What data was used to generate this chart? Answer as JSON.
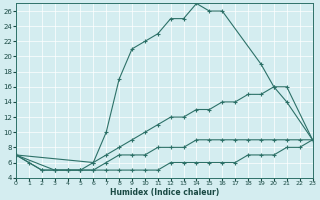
{
  "bg_color": "#d4edf0",
  "line_color": "#2d7168",
  "xlabel": "Humidex (Indice chaleur)",
  "xlim": [
    0,
    23
  ],
  "ylim": [
    4,
    27
  ],
  "xticks": [
    0,
    1,
    2,
    3,
    4,
    5,
    6,
    7,
    8,
    9,
    10,
    11,
    12,
    13,
    14,
    15,
    16,
    17,
    18,
    19,
    20,
    21,
    22,
    23
  ],
  "yticks": [
    4,
    6,
    8,
    10,
    12,
    14,
    16,
    18,
    20,
    22,
    24,
    26
  ],
  "curve1_x": [
    0,
    1,
    2,
    3,
    4,
    5,
    6,
    7,
    8,
    9,
    10,
    11,
    12,
    13,
    14,
    15,
    16,
    19,
    20,
    21,
    23
  ],
  "curve1_y": [
    7,
    6,
    5,
    5,
    5,
    5,
    6,
    10,
    17,
    21,
    22,
    23,
    25,
    25,
    27,
    26,
    26,
    19,
    16,
    14,
    9
  ],
  "curve2_x": [
    0,
    6,
    7,
    8,
    9,
    10,
    11,
    12,
    13,
    14,
    15,
    16,
    17,
    18,
    19,
    20,
    21,
    23
  ],
  "curve2_y": [
    7,
    6,
    7,
    8,
    9,
    10,
    11,
    12,
    12,
    13,
    13,
    14,
    14,
    15,
    15,
    16,
    16,
    9
  ],
  "curve3_x": [
    0,
    3,
    4,
    5,
    6,
    7,
    8,
    9,
    10,
    11,
    12,
    13,
    14,
    15,
    16,
    17,
    18,
    19,
    20,
    21,
    22,
    23
  ],
  "curve3_y": [
    7,
    5,
    5,
    5,
    5,
    6,
    7,
    7,
    7,
    8,
    8,
    8,
    9,
    9,
    9,
    9,
    9,
    9,
    9,
    9,
    9,
    9
  ],
  "curve4_x": [
    0,
    2,
    3,
    4,
    5,
    6,
    7,
    8,
    9,
    10,
    11,
    12,
    13,
    14,
    15,
    16,
    17,
    18,
    19,
    20,
    21,
    22,
    23
  ],
  "curve4_y": [
    7,
    5,
    5,
    5,
    5,
    5,
    5,
    5,
    5,
    5,
    5,
    6,
    6,
    6,
    6,
    6,
    6,
    7,
    7,
    7,
    8,
    8,
    9
  ]
}
